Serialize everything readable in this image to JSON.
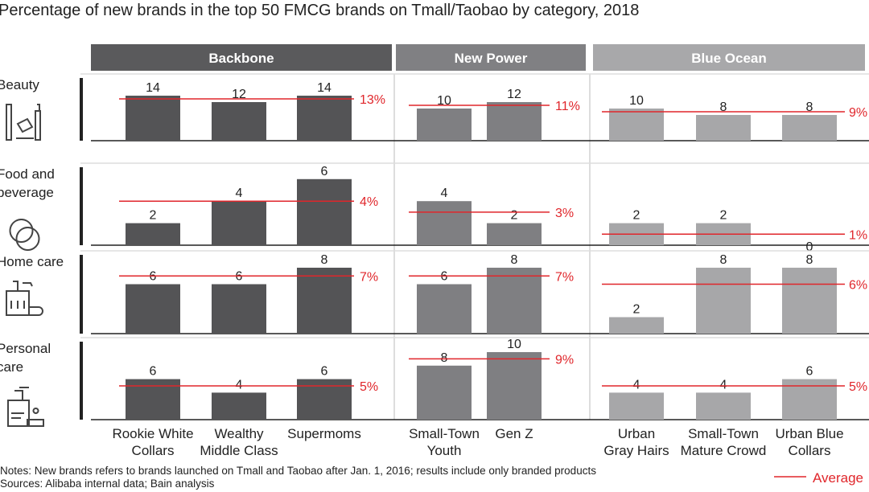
{
  "chart_data": {
    "type": "bar",
    "title": "Percentage of new brands in the top 50 FMCG brands on Tmall/Taobao by category, 2018",
    "groups": [
      {
        "name": "Backbone",
        "color": "#545456",
        "header_color": "#5a5a5c",
        "categories": [
          "Rookie White Collars",
          "Wealthy Middle Class",
          "Supermoms"
        ],
        "category_lines": [
          [
            "Rookie White",
            "Collars"
          ],
          [
            "Wealthy",
            "Middle Class"
          ],
          [
            "Supermoms"
          ]
        ]
      },
      {
        "name": "New Power",
        "color": "#7f7f82",
        "header_color": "#808083",
        "categories": [
          "Small-Town Youth",
          "Gen Z"
        ],
        "category_lines": [
          [
            "Small-Town",
            "Youth"
          ],
          [
            "Gen Z"
          ]
        ]
      },
      {
        "name": "Blue Ocean",
        "color": "#a7a7a9",
        "header_color": "#a8a8aa",
        "categories": [
          "Urban Gray Hairs",
          "Small-Town Mature Crowd",
          "Urban Blue Collars"
        ],
        "category_lines": [
          [
            "Urban",
            "Gray Hairs"
          ],
          [
            "Small-Town",
            "Mature Crowd"
          ],
          [
            "Urban Blue",
            "Collars"
          ]
        ]
      }
    ],
    "rows": [
      {
        "name": "Beauty",
        "label_lines": [
          "Beauty"
        ],
        "icon": "cosmetics-icon",
        "values": [
          [
            14,
            12,
            14
          ],
          [
            10,
            12
          ],
          [
            10,
            8,
            8
          ]
        ],
        "averages": [
          13,
          11,
          9
        ]
      },
      {
        "name": "Food and beverage",
        "label_lines": [
          "Food and",
          "beverage"
        ],
        "icon": "cookies-icon",
        "values": [
          [
            2,
            4,
            6
          ],
          [
            4,
            2
          ],
          [
            2,
            2,
            0
          ]
        ],
        "averages": [
          4,
          3,
          1
        ]
      },
      {
        "name": "Home care",
        "label_lines": [
          "Home care"
        ],
        "icon": "cleaning-supplies-icon",
        "values": [
          [
            6,
            6,
            8
          ],
          [
            6,
            8
          ],
          [
            2,
            8,
            8
          ]
        ],
        "averages": [
          7,
          7,
          6
        ]
      },
      {
        "name": "Personal care",
        "label_lines": [
          "Personal",
          "care"
        ],
        "icon": "soap-pump-icon",
        "values": [
          [
            6,
            4,
            6
          ],
          [
            8,
            10
          ],
          [
            4,
            4,
            6
          ]
        ],
        "averages": [
          5,
          9,
          5
        ]
      }
    ],
    "average_unit": "%",
    "average_color": "#e0262b",
    "legend": {
      "label": "Average",
      "placement": "bottom-right"
    },
    "notes": "Notes: New brands refers to brands launched on Tmall and Taobao after Jan. 1, 2016; results include only branded products",
    "sources": "Sources: Alibaba internal data; Bain analysis"
  }
}
